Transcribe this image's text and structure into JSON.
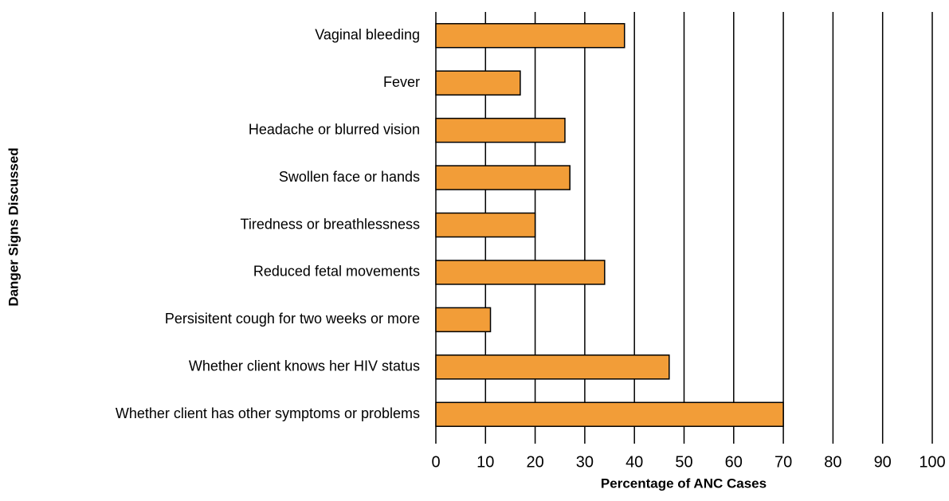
{
  "chart_data": {
    "type": "bar",
    "orientation": "horizontal",
    "categories": [
      "Vaginal bleeding",
      "Fever",
      "Headache or blurred vision",
      "Swollen face or hands",
      "Tiredness or breathlessness",
      "Reduced fetal movements",
      "Persisitent cough for two weeks or more",
      "Whether client knows her HIV status",
      "Whether client has other symptoms or problems"
    ],
    "values": [
      38,
      17,
      26,
      27,
      20,
      34,
      11,
      47,
      70
    ],
    "color": "#f29d38",
    "xlim": [
      0,
      100
    ],
    "xticks": [
      0,
      10,
      20,
      30,
      40,
      50,
      60,
      70,
      80,
      90,
      100
    ],
    "grid": true,
    "x_label": "Percentage of ANC Cases",
    "y_label": "Danger Signs Discussed"
  }
}
